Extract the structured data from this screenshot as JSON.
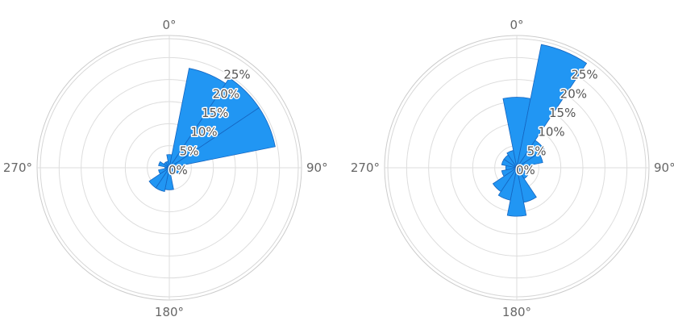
{
  "chart_data": [
    {
      "type": "polar-bar",
      "title": "",
      "angle_ticks": [
        "0°",
        "90°",
        "180°",
        "270°"
      ],
      "radial_ticks": [
        "0%",
        "5%",
        "10%",
        "15%",
        "20%",
        "25%"
      ],
      "radial_values": [
        0,
        5,
        10,
        15,
        20,
        25
      ],
      "rmax": 30,
      "grid": true,
      "bar_color": "#2196f3",
      "bar_stroke": "#1565c0",
      "sector_width_deg": 22.5,
      "directions_deg": [
        0,
        22.5,
        45,
        67.5,
        90,
        112.5,
        135,
        157.5,
        180,
        202.5,
        225,
        247.5,
        270,
        292.5,
        315,
        337.5
      ],
      "values": [
        3,
        23,
        24.5,
        24.5,
        3.5,
        2.5,
        1.5,
        1.5,
        5,
        5.5,
        5.5,
        2.5,
        1,
        2.5,
        1.5,
        1.5
      ]
    },
    {
      "type": "polar-bar",
      "title": "",
      "angle_ticks": [
        "0°",
        "90°",
        "180°",
        "270°"
      ],
      "radial_ticks": [
        "0%",
        "5%",
        "10%",
        "15%",
        "20%",
        "25%"
      ],
      "radial_values": [
        0,
        5,
        10,
        15,
        20,
        25
      ],
      "rmax": 30,
      "grid": true,
      "bar_color": "#2196f3",
      "bar_stroke": "#1565c0",
      "sector_width_deg": 22.5,
      "directions_deg": [
        0,
        22.5,
        45,
        67.5,
        90,
        112.5,
        135,
        157.5,
        180,
        202.5,
        225,
        247.5,
        270,
        292.5,
        315,
        337.5
      ],
      "values": [
        16,
        28.5,
        7.5,
        6,
        3,
        2,
        3,
        8,
        11,
        7.5,
        6.5,
        3.5,
        2.5,
        3.5,
        3.5,
        4
      ]
    }
  ]
}
